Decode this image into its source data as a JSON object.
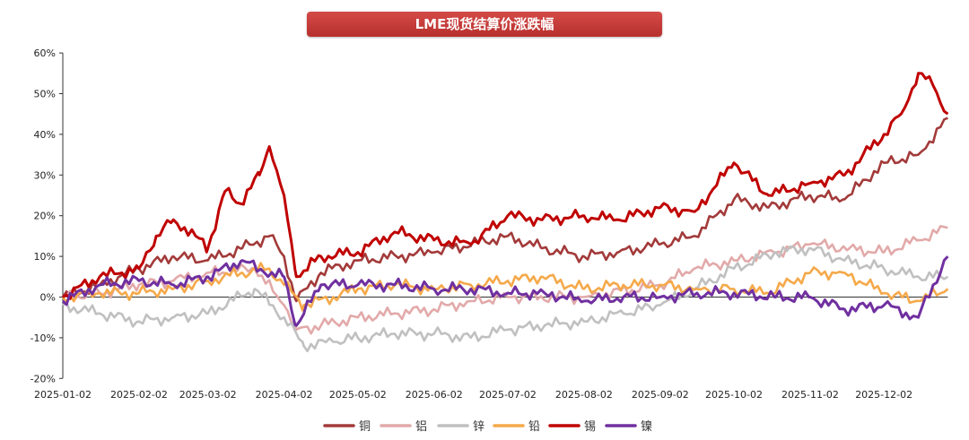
{
  "chart_data": {
    "type": "line",
    "title": "LME现货结算价涨跌幅",
    "xlabel": "",
    "ylabel": "",
    "ylim": [
      -20,
      60
    ],
    "ytick_labels": [
      "-20%",
      "-10%",
      "0%",
      "10%",
      "20%",
      "30%",
      "40%",
      "50%",
      "60%"
    ],
    "yticks": [
      -20,
      -10,
      0,
      10,
      20,
      30,
      40,
      50,
      60
    ],
    "x_unit": "days since 2025-01-02",
    "xlim": [
      0,
      360
    ],
    "xticks": [
      0,
      31,
      59,
      90,
      120,
      151,
      181,
      212,
      243,
      273,
      304,
      334
    ],
    "xtick_labels": [
      "2025-01-02",
      "2025-02-02",
      "2025-03-02",
      "2025-04-02",
      "2025-05-02",
      "2025-06-02",
      "2025-07-02",
      "2025-08-02",
      "2025-09-02",
      "2025-10-02",
      "2025-11-02",
      "2025-12-02"
    ],
    "grid": false,
    "legend_position": "bottom",
    "series": [
      {
        "name": "铜",
        "color": "#a33a3a",
        "x": [
          0,
          15,
          31,
          45,
          59,
          73,
          84,
          90,
          95,
          105,
          120,
          151,
          181,
          195,
          212,
          226,
          243,
          257,
          273,
          287,
          304,
          318,
          334,
          348,
          360
        ],
        "values": [
          0,
          3,
          7,
          10,
          9,
          12,
          15,
          10,
          -1,
          6,
          9,
          11,
          15,
          12,
          10,
          11,
          13,
          15,
          24,
          22,
          25,
          24,
          33,
          35,
          44
        ]
      },
      {
        "name": "铝",
        "color": "#e2a9a9",
        "x": [
          0,
          15,
          31,
          45,
          59,
          78,
          90,
          95,
          105,
          120,
          135,
          151,
          166,
          181,
          212,
          243,
          257,
          273,
          290,
          304,
          320,
          334,
          348,
          360
        ],
        "values": [
          0,
          1,
          3,
          4,
          6,
          7,
          -2,
          -8,
          -7,
          -5,
          -4,
          -3,
          -1,
          0,
          0,
          3,
          7,
          9,
          11,
          13,
          12,
          11,
          14,
          17
        ],
        "line_note": ""
      },
      {
        "name": "锌",
        "color": "#c0c0c0",
        "x": [
          0,
          15,
          31,
          45,
          59,
          78,
          90,
          98,
          110,
          120,
          135,
          151,
          166,
          181,
          196,
          212,
          228,
          243,
          257,
          273,
          290,
          304,
          318,
          334,
          348,
          360
        ],
        "values": [
          -2,
          -4,
          -6,
          -5,
          -4,
          2,
          -5,
          -12,
          -11,
          -10,
          -9,
          -9,
          -10,
          -8,
          -7,
          -6,
          -4,
          -2,
          2,
          7,
          11,
          12,
          9,
          7,
          5,
          5
        ]
      },
      {
        "name": "铅",
        "color": "#f5a94a",
        "x": [
          0,
          15,
          31,
          45,
          59,
          73,
          84,
          90,
          98,
          110,
          120,
          135,
          151,
          166,
          181,
          195,
          212,
          228,
          243,
          258,
          273,
          287,
          304,
          318,
          334,
          348,
          360
        ],
        "values": [
          0,
          1,
          1,
          2,
          4,
          6,
          7,
          3,
          -2,
          0,
          2,
          3,
          2,
          3,
          4,
          5,
          2,
          3,
          3,
          2,
          2,
          1,
          6,
          6,
          1,
          -1,
          2
        ]
      },
      {
        "name": "锡",
        "color": "#c00000",
        "x": [
          0,
          15,
          31,
          38,
          45,
          54,
          59,
          66,
          72,
          80,
          84,
          90,
          95,
          105,
          120,
          135,
          151,
          166,
          181,
          195,
          212,
          226,
          243,
          257,
          273,
          287,
          304,
          318,
          334,
          341,
          348,
          354,
          360
        ],
        "values": [
          0,
          5,
          7,
          15,
          19,
          15,
          12,
          26,
          23,
          30,
          37,
          25,
          5,
          10,
          11,
          16,
          14,
          13,
          20,
          19,
          20,
          19,
          22,
          21,
          33,
          25,
          28,
          30,
          40,
          45,
          55,
          52,
          45
        ]
      },
      {
        "name": "镍",
        "color": "#7030a0",
        "x": [
          0,
          15,
          31,
          45,
          59,
          73,
          82,
          90,
          95,
          105,
          120,
          135,
          151,
          166,
          181,
          196,
          212,
          228,
          243,
          258,
          273,
          290,
          304,
          318,
          334,
          348,
          354,
          360
        ],
        "values": [
          -1,
          3,
          4,
          3,
          5,
          9,
          6,
          5,
          -7,
          3,
          3,
          3,
          2,
          2,
          1,
          1,
          -1,
          0,
          0,
          1,
          1,
          0,
          0,
          -3,
          -2,
          -5,
          3,
          10
        ]
      }
    ]
  }
}
